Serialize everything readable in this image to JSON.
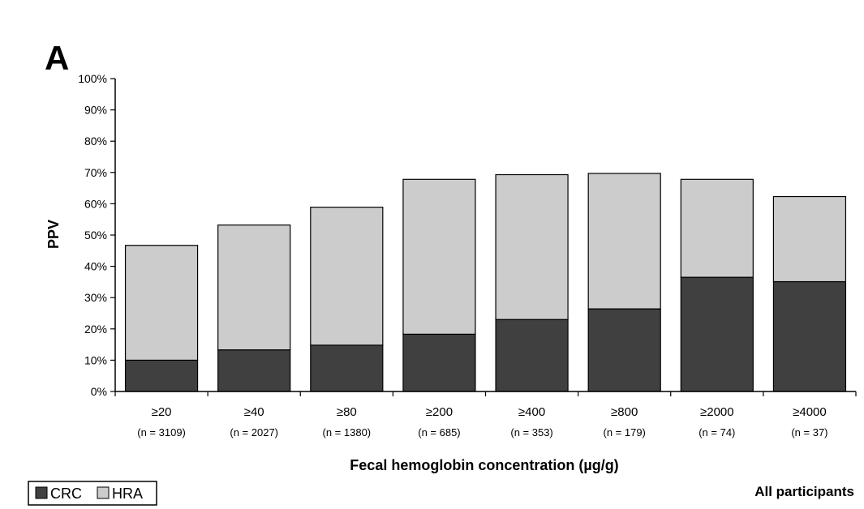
{
  "panel_letter": "A",
  "subset_label": "All participants",
  "colors": {
    "CRC": "#404040",
    "HRA": "#cccccc",
    "axis": "#000000"
  },
  "chart_data": {
    "type": "bar",
    "stacked": true,
    "title": "",
    "xlabel": "Fecal hemoglobin concentration (µg/g)",
    "ylabel": "PPV",
    "ylim": [
      0,
      100
    ],
    "yticks": [
      "0%",
      "10%",
      "20%",
      "30%",
      "40%",
      "50%",
      "60%",
      "70%",
      "80%",
      "90%",
      "100%"
    ],
    "categories": [
      "≥20",
      "≥40",
      "≥80",
      "≥200",
      "≥400",
      "≥800",
      "≥2000",
      "≥4000"
    ],
    "sample_sizes": [
      "(n = 3109)",
      "(n = 2027)",
      "(n = 1380)",
      "(n = 685)",
      "(n = 353)",
      "(n = 179)",
      "(n = 74)",
      "(n = 37)"
    ],
    "series": [
      {
        "name": "CRC",
        "values": [
          10.0,
          13.3,
          14.8,
          18.3,
          23.0,
          26.4,
          36.5,
          35.1
        ]
      },
      {
        "name": "HRA",
        "values": [
          36.7,
          39.9,
          44.1,
          49.5,
          46.3,
          43.3,
          31.3,
          27.2
        ]
      }
    ],
    "legend": {
      "position": "bottom-left",
      "entries": [
        "CRC",
        "HRA"
      ]
    },
    "grid": false
  }
}
